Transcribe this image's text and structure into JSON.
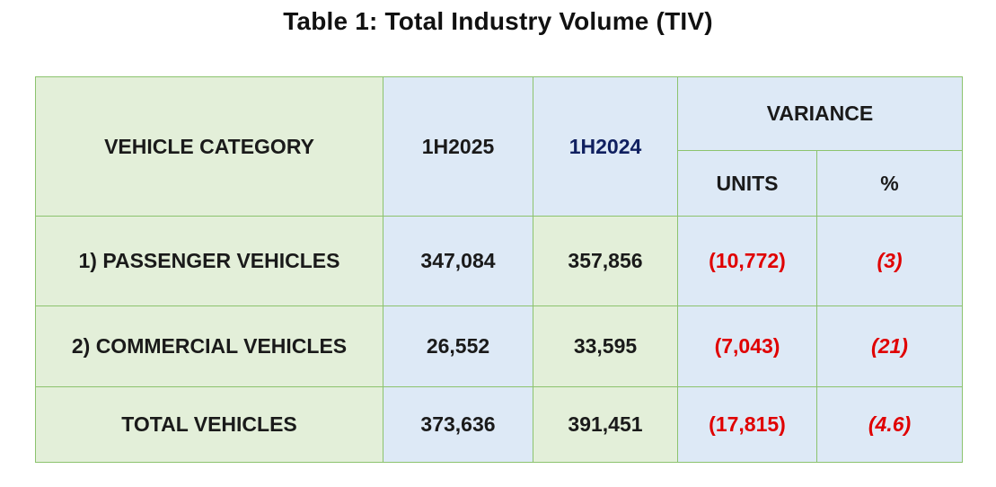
{
  "title": "Table 1: Total Industry Volume (TIV)",
  "headers": {
    "vehicle_category": "VEHICLE CATEGORY",
    "col_1h2025": "1H2025",
    "col_1h2024": "1H2024",
    "variance": "VARIANCE",
    "units": "UNITS",
    "percent": "%"
  },
  "rows": [
    {
      "category": "1) PASSENGER VEHICLES",
      "h2025": "347,084",
      "h2024": "357,856",
      "units": "(10,772)",
      "percent": "(3)"
    },
    {
      "category": "2) COMMERCIAL VEHICLES",
      "h2025": "26,552",
      "h2024": "33,595",
      "units": "(7,043)",
      "percent": "(21)"
    },
    {
      "category": "TOTAL VEHICLES",
      "h2025": "373,636",
      "h2024": "391,451",
      "units": "(17,815)",
      "percent": "(4.6)"
    }
  ],
  "colors": {
    "green_cell": "#e3efd9",
    "blue_cell": "#dde9f6",
    "border": "#8cc36e",
    "negative": "#e00000"
  }
}
